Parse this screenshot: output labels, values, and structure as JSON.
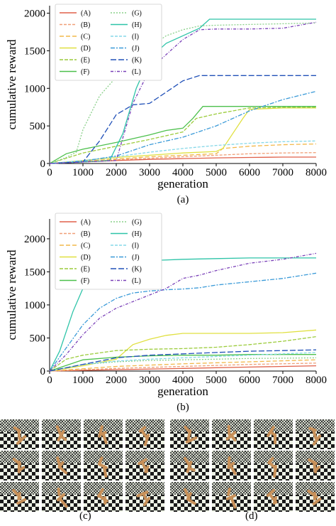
{
  "chart_data": [
    {
      "type": "line",
      "panel_label": "(a)",
      "xlabel": "generation",
      "ylabel": "cumulative reward",
      "xlim": [
        0,
        8000
      ],
      "ylim": [
        0,
        2100
      ],
      "xticks": [
        0,
        1000,
        2000,
        3000,
        4000,
        5000,
        6000,
        7000,
        8000
      ],
      "yticks": [
        0,
        500,
        1000,
        1500,
        2000
      ],
      "legend_position": "top-left",
      "series": [
        {
          "name": "(A)",
          "color": "#e0614a",
          "dash": "",
          "x": [
            0,
            1000,
            2000,
            3000,
            4000,
            5000,
            6000,
            7000,
            8000
          ],
          "y": [
            0,
            20,
            40,
            55,
            65,
            75,
            80,
            85,
            85
          ]
        },
        {
          "name": "(B)",
          "color": "#f0a078",
          "dash": "4,2",
          "x": [
            0,
            1000,
            2000,
            3000,
            4000,
            5000,
            6000,
            7000,
            8000
          ],
          "y": [
            0,
            25,
            50,
            70,
            90,
            110,
            130,
            140,
            145
          ]
        },
        {
          "name": "(C)",
          "color": "#f2b84a",
          "dash": "6,3",
          "x": [
            0,
            1000,
            2000,
            3000,
            4000,
            5000,
            5200,
            6000,
            7000,
            8000
          ],
          "y": [
            0,
            30,
            60,
            90,
            110,
            130,
            200,
            230,
            250,
            260
          ]
        },
        {
          "name": "(D)",
          "color": "#e0e040",
          "dash": "",
          "x": [
            0,
            1000,
            2000,
            3000,
            4000,
            5000,
            5200,
            5500,
            5800,
            6000,
            7000,
            8000
          ],
          "y": [
            0,
            40,
            80,
            110,
            140,
            160,
            200,
            400,
            600,
            720,
            740,
            740
          ]
        },
        {
          "name": "(E)",
          "color": "#9ccc3c",
          "dash": "5,2",
          "x": [
            0,
            1000,
            2000,
            3000,
            4000,
            4400,
            5000,
            5500,
            6000,
            7000,
            8000
          ],
          "y": [
            0,
            140,
            230,
            320,
            420,
            600,
            660,
            700,
            740,
            745,
            745
          ]
        },
        {
          "name": "(F)",
          "color": "#4cc04c",
          "dash": "",
          "x": [
            0,
            500,
            1000,
            2000,
            3000,
            3500,
            4000,
            4300,
            4600,
            5000,
            8000
          ],
          "y": [
            0,
            130,
            190,
            280,
            380,
            440,
            470,
            600,
            760,
            760,
            760
          ]
        },
        {
          "name": "(G)",
          "color": "#8ad08a",
          "dash": "2,2",
          "x": [
            0,
            500,
            800,
            1000,
            1500,
            2000,
            2500,
            3000,
            3500,
            4000,
            4500,
            5000,
            6000,
            7000,
            8000
          ],
          "y": [
            0,
            80,
            150,
            450,
            900,
            1150,
            1350,
            1550,
            1700,
            1780,
            1830,
            1840,
            1850,
            1860,
            1870
          ]
        },
        {
          "name": "(H)",
          "color": "#2ec4a8",
          "dash": "",
          "x": [
            0,
            1000,
            1800,
            2200,
            2600,
            3000,
            3500,
            4000,
            4500,
            4800,
            8000
          ],
          "y": [
            0,
            20,
            40,
            400,
            1000,
            1400,
            1600,
            1700,
            1800,
            1920,
            1920
          ]
        },
        {
          "name": "(I)",
          "color": "#86d8e8",
          "dash": "4,2",
          "x": [
            0,
            1000,
            2000,
            3000,
            4000,
            5000,
            6000,
            7000,
            8000
          ],
          "y": [
            0,
            40,
            90,
            150,
            200,
            240,
            270,
            290,
            300
          ]
        },
        {
          "name": "(J)",
          "color": "#3a9ad8",
          "dash": "6,2,2,2",
          "x": [
            0,
            1000,
            2000,
            3000,
            4000,
            5000,
            6000,
            7000,
            8000
          ],
          "y": [
            0,
            30,
            100,
            250,
            350,
            500,
            700,
            850,
            960
          ]
        },
        {
          "name": "(K)",
          "color": "#2050b8",
          "dash": "8,3",
          "x": [
            0,
            1000,
            1500,
            2000,
            2500,
            3000,
            3500,
            4000,
            4500,
            5000,
            8000
          ],
          "y": [
            0,
            20,
            300,
            650,
            780,
            800,
            950,
            1100,
            1170,
            1170,
            1170
          ]
        },
        {
          "name": "(L)",
          "color": "#7a40b8",
          "dash": "4,2,1,2",
          "x": [
            0,
            1000,
            2000,
            2500,
            3000,
            3500,
            4000,
            4500,
            5000,
            6000,
            7000,
            8000
          ],
          "y": [
            0,
            20,
            40,
            800,
            1250,
            1450,
            1650,
            1780,
            1790,
            1790,
            1800,
            1880
          ]
        }
      ]
    },
    {
      "type": "line",
      "panel_label": "(b)",
      "xlabel": "generation",
      "ylabel": "cumulative reward",
      "xlim": [
        0,
        8000
      ],
      "ylim": [
        0,
        2300
      ],
      "xticks": [
        0,
        1000,
        2000,
        3000,
        4000,
        5000,
        6000,
        7000,
        8000
      ],
      "yticks": [
        0,
        500,
        1000,
        1500,
        2000
      ],
      "legend_position": "top-left",
      "series": [
        {
          "name": "(A)",
          "color": "#e0614a",
          "dash": "",
          "x": [
            0,
            2000,
            4000,
            6000,
            8000
          ],
          "y": [
            0,
            20,
            40,
            60,
            80
          ]
        },
        {
          "name": "(B)",
          "color": "#f0a078",
          "dash": "4,2",
          "x": [
            0,
            2000,
            4000,
            6000,
            8000
          ],
          "y": [
            0,
            40,
            70,
            100,
            120
          ]
        },
        {
          "name": "(C)",
          "color": "#f2b84a",
          "dash": "6,3",
          "x": [
            0,
            2000,
            4000,
            6000,
            8000
          ],
          "y": [
            0,
            70,
            110,
            140,
            170
          ]
        },
        {
          "name": "(D)",
          "color": "#e0e040",
          "dash": "",
          "x": [
            0,
            1000,
            2000,
            2500,
            3000,
            3500,
            4000,
            5000,
            6000,
            7000,
            8000
          ],
          "y": [
            0,
            80,
            180,
            400,
            480,
            540,
            570,
            570,
            570,
            580,
            620
          ]
        },
        {
          "name": "(E)",
          "color": "#9ccc3c",
          "dash": "5,2",
          "x": [
            0,
            500,
            1000,
            2000,
            3000,
            4000,
            5000,
            6000,
            7000,
            8000
          ],
          "y": [
            0,
            180,
            240,
            310,
            330,
            340,
            360,
            400,
            450,
            520
          ]
        },
        {
          "name": "(F)",
          "color": "#4cc04c",
          "dash": "",
          "x": [
            0,
            1000,
            2000,
            3000,
            4000,
            5000,
            6000,
            7000,
            8000
          ],
          "y": [
            0,
            170,
            210,
            230,
            240,
            240,
            250,
            250,
            250
          ]
        },
        {
          "name": "(G)",
          "color": "#8ad08a",
          "dash": "2,2",
          "x": [
            0,
            1000,
            2000,
            3000,
            4000,
            5000,
            6000,
            7000,
            8000
          ],
          "y": [
            0,
            100,
            140,
            160,
            170,
            180,
            190,
            195,
            200
          ]
        },
        {
          "name": "(H)",
          "color": "#2ec4a8",
          "dash": "",
          "x": [
            0,
            300,
            700,
            1000,
            1500,
            2000,
            2500,
            3000,
            4000,
            5000,
            6000,
            7000,
            8000
          ],
          "y": [
            0,
            300,
            900,
            1250,
            1500,
            1620,
            1660,
            1670,
            1690,
            1700,
            1710,
            1710,
            1710
          ]
        },
        {
          "name": "(I)",
          "color": "#86d8e8",
          "dash": "4,2",
          "x": [
            0,
            1000,
            2000,
            3000,
            4000,
            5000,
            6000,
            7000,
            8000
          ],
          "y": [
            0,
            100,
            150,
            180,
            200,
            220,
            240,
            260,
            280
          ]
        },
        {
          "name": "(J)",
          "color": "#3a9ad8",
          "dash": "6,2,2,2",
          "x": [
            0,
            500,
            1000,
            1500,
            2000,
            2500,
            3000,
            3500,
            4000,
            4500,
            5000,
            6000,
            7000,
            8000
          ],
          "y": [
            0,
            350,
            700,
            950,
            1100,
            1180,
            1210,
            1230,
            1240,
            1260,
            1300,
            1350,
            1400,
            1480
          ]
        },
        {
          "name": "(K)",
          "color": "#2050b8",
          "dash": "8,3",
          "x": [
            0,
            1000,
            2000,
            3000,
            4000,
            5000,
            6000,
            7000,
            8000
          ],
          "y": [
            0,
            100,
            200,
            240,
            260,
            280,
            300,
            310,
            320
          ]
        },
        {
          "name": "(L)",
          "color": "#7a40b8",
          "dash": "4,2,1,2",
          "x": [
            0,
            500,
            1000,
            1500,
            2000,
            2500,
            3000,
            3500,
            4000,
            4500,
            5000,
            6000,
            7000,
            8000
          ],
          "y": [
            0,
            250,
            550,
            800,
            950,
            1050,
            1150,
            1250,
            1400,
            1450,
            1520,
            1630,
            1690,
            1780
          ]
        }
      ]
    }
  ],
  "panels": {
    "c_label": "(c)",
    "d_label": "(d)"
  }
}
